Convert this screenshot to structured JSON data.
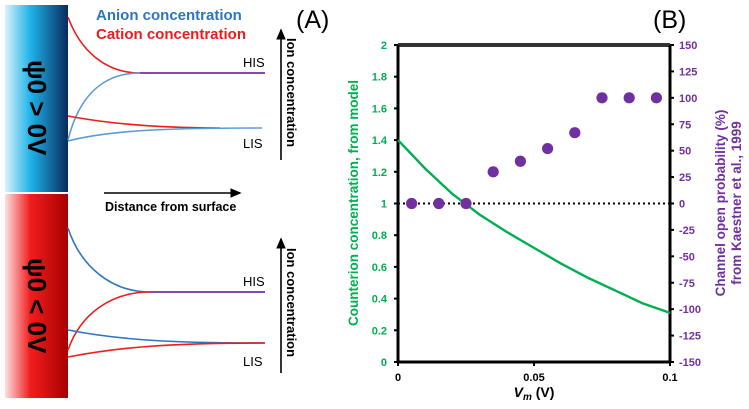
{
  "panel_a": {
    "label": "(A)",
    "legend": {
      "anion": "Anion concentration",
      "cation": "Cation concentration"
    },
    "top_surface_label": "ψ0 > 0V",
    "bottom_surface_label": "ψ0 < 0V",
    "his_label": "HIS",
    "lis_label": "LIS",
    "y_axis_label": "Ion concentration",
    "x_axis_label": "Distance from surface"
  },
  "colors": {
    "anion": "#5b9bd5",
    "anion_dark": "#2e75c0",
    "cation": "#ee1c1c",
    "bulk": "#7030a0",
    "green": "#00b050",
    "purple": "#7030a0"
  },
  "chart_data": {
    "type": "scatter+line",
    "panel_label": "(B)",
    "xlabel": "Vm (V)",
    "xlabel_main": "V",
    "xlabel_sub": "m",
    "xlabel_unit": " (V)",
    "ylabel_left": "Counterion concentration, from model",
    "ylabel_right_line1": "Channel open probability (%)",
    "ylabel_right_line2": "from Kaestner et al., 1999",
    "xlim": [
      0,
      0.1
    ],
    "ylim_left": [
      0,
      2
    ],
    "ylim_right": [
      -150,
      150
    ],
    "x_ticks": [
      "0",
      "0.05",
      "0.1"
    ],
    "left_ticks": [
      "0",
      "0.2",
      "0.4",
      "0.6",
      "0.8",
      "1",
      "1.2",
      "1.4",
      "1.6",
      "1.8",
      "2"
    ],
    "right_ticks": [
      "-150",
      "-125",
      "-100",
      "-75",
      "-50",
      "-25",
      "0",
      "25",
      "50",
      "75",
      "100",
      "125",
      "150"
    ],
    "reference_line_left": 1,
    "series": [
      {
        "name": "Counterion concentration (model)",
        "axis": "left",
        "kind": "line",
        "x": [
          0,
          0.01,
          0.02,
          0.03,
          0.04,
          0.05,
          0.06,
          0.07,
          0.08,
          0.09,
          0.1
        ],
        "y": [
          1.4,
          1.22,
          1.06,
          0.93,
          0.82,
          0.72,
          0.62,
          0.53,
          0.45,
          0.37,
          0.31
        ]
      },
      {
        "name": "Channel open probability (%)",
        "axis": "right",
        "kind": "scatter",
        "x": [
          0.005,
          0.015,
          0.025,
          0.035,
          0.045,
          0.055,
          0.065,
          0.075,
          0.085,
          0.095
        ],
        "y": [
          0,
          0,
          0,
          30,
          40,
          52,
          67,
          100,
          100,
          100
        ]
      }
    ]
  }
}
